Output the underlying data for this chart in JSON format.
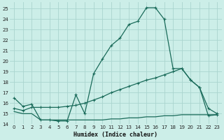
{
  "xlabel": "Humidex (Indice chaleur)",
  "bg_color": "#cceee8",
  "grid_color": "#aad4ce",
  "line_color": "#1a6b5a",
  "xlim": [
    -0.5,
    23.5
  ],
  "ylim": [
    14,
    25.6
  ],
  "xticks": [
    0,
    1,
    2,
    3,
    4,
    5,
    6,
    7,
    8,
    9,
    10,
    11,
    12,
    13,
    14,
    15,
    16,
    17,
    18,
    19,
    20,
    21,
    22,
    23
  ],
  "yticks": [
    14,
    15,
    16,
    17,
    18,
    19,
    20,
    21,
    22,
    23,
    24,
    25
  ],
  "series1_x": [
    0,
    1,
    2,
    3,
    4,
    5,
    6,
    7,
    8,
    9,
    10,
    11,
    12,
    13,
    14,
    15,
    16,
    17,
    18,
    19,
    20,
    21,
    22,
    23
  ],
  "series1_y": [
    16.5,
    15.7,
    15.9,
    14.4,
    14.4,
    14.3,
    14.3,
    16.8,
    15.0,
    18.8,
    20.2,
    21.5,
    22.2,
    23.5,
    23.8,
    25.1,
    25.1,
    24.0,
    19.3,
    19.3,
    18.2,
    17.5,
    15.5,
    15.0
  ],
  "series2_x": [
    0,
    1,
    2,
    3,
    4,
    5,
    6,
    7,
    8,
    9,
    10,
    11,
    12,
    13,
    14,
    15,
    16,
    17,
    18,
    19,
    20,
    21,
    22,
    23
  ],
  "series2_y": [
    15.5,
    15.3,
    15.6,
    15.6,
    15.6,
    15.6,
    15.7,
    15.8,
    16.0,
    16.3,
    16.6,
    17.0,
    17.3,
    17.6,
    17.9,
    18.2,
    18.4,
    18.7,
    19.0,
    19.3,
    18.2,
    17.5,
    14.8,
    14.9
  ],
  "series3_x": [
    0,
    1,
    2,
    3,
    4,
    5,
    6,
    7,
    8,
    9,
    10,
    11,
    12,
    13,
    14,
    15,
    16,
    17,
    18,
    19,
    20,
    21,
    22,
    23
  ],
  "series3_y": [
    15.2,
    15.0,
    15.0,
    14.4,
    14.4,
    14.4,
    14.4,
    14.4,
    14.4,
    14.4,
    14.4,
    14.5,
    14.5,
    14.6,
    14.6,
    14.7,
    14.7,
    14.8,
    14.8,
    14.9,
    14.9,
    14.9,
    14.9,
    14.9
  ]
}
